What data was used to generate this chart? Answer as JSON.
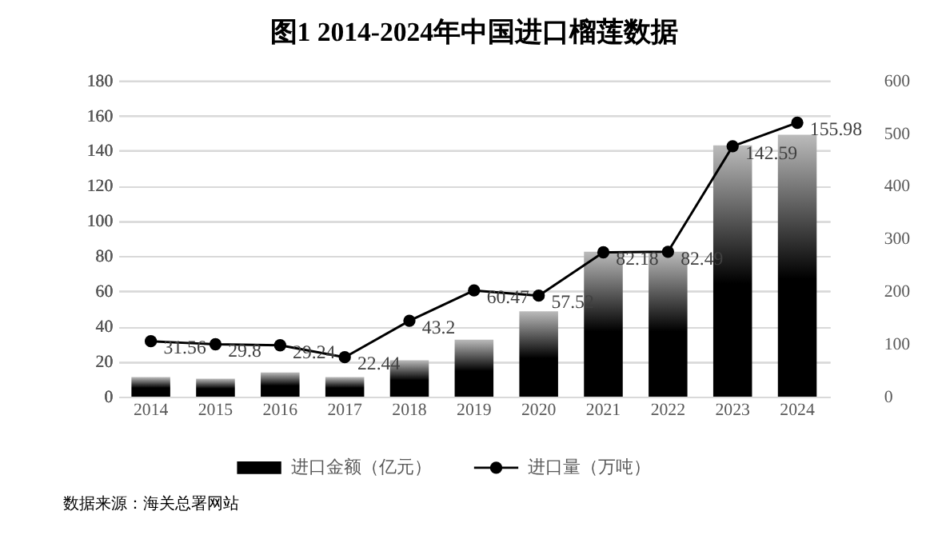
{
  "chart_data": {
    "type": "bar",
    "title": "图1  2014-2024年中国进口榴莲数据",
    "categories": [
      "2014",
      "2015",
      "2016",
      "2017",
      "2018",
      "2019",
      "2020",
      "2021",
      "2022",
      "2023",
      "2024"
    ],
    "series": [
      {
        "name": "进口金额（亿元）",
        "axis": "y2",
        "color": "#000000",
        "values": [
          37,
          34,
          46,
          37,
          69,
          108,
          162,
          275,
          275,
          477,
          497
        ]
      },
      {
        "name": "进口量（万吨）",
        "type": "line",
        "color": "#000000",
        "marker": "circle",
        "data_labels": true,
        "values": [
          31.56,
          29.8,
          29.24,
          22.44,
          43.2,
          60.47,
          57.52,
          82.18,
          82.49,
          142.59,
          155.98
        ]
      }
    ],
    "ylim": [
      0,
      180
    ],
    "yticks": [
      0,
      20,
      40,
      60,
      80,
      100,
      120,
      140,
      160,
      180
    ],
    "y2lim": [
      0,
      600
    ],
    "y2ticks": [
      0,
      100,
      200,
      300,
      400,
      500,
      600
    ],
    "grid": "y",
    "legend": "bottom",
    "annotations": [
      "数据来源：海关总署网站"
    ]
  }
}
